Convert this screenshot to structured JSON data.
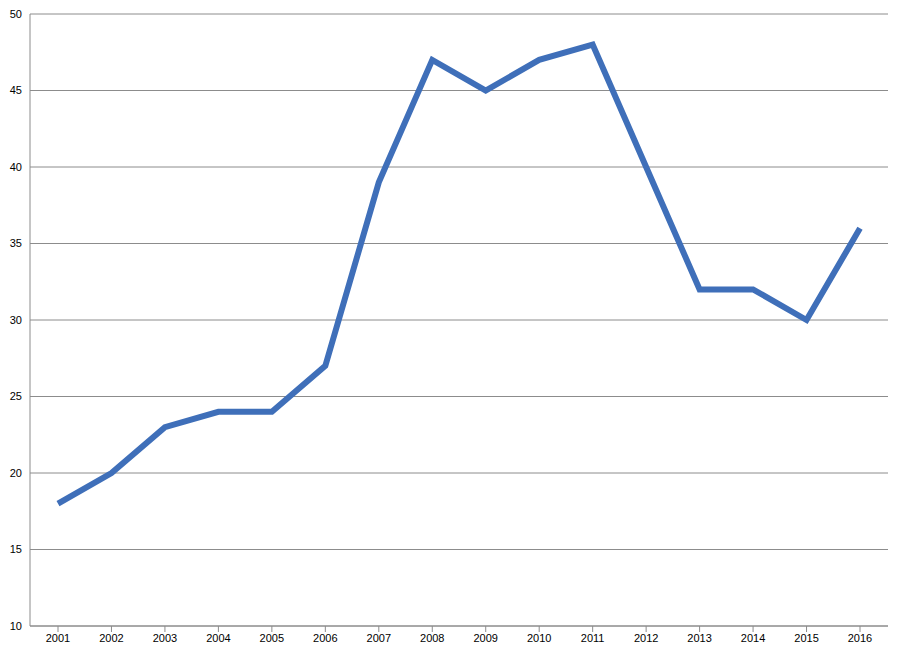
{
  "chart_data": {
    "type": "line",
    "categories": [
      "2001",
      "2002",
      "2003",
      "2004",
      "2005",
      "2006",
      "2007",
      "2008",
      "2009",
      "2010",
      "2011",
      "2012",
      "2013",
      "2014",
      "2015",
      "2016"
    ],
    "values": [
      18,
      20,
      23,
      24,
      24,
      27,
      39,
      47,
      45,
      47,
      48,
      40,
      32,
      32,
      30,
      36
    ],
    "color": "#3f6fb9",
    "ylim": [
      10,
      50
    ],
    "yticks": [
      10,
      15,
      20,
      25,
      30,
      35,
      40,
      45,
      50
    ],
    "grid": true
  }
}
